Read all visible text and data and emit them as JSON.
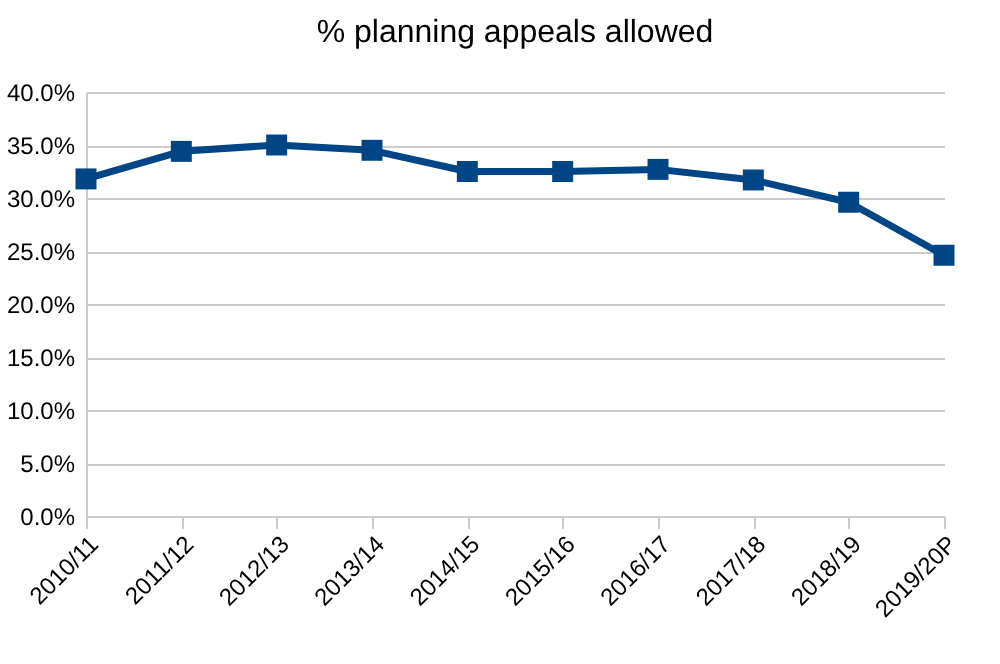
{
  "chart_data": {
    "type": "line",
    "title": "% planning appeals allowed",
    "categories": [
      "2010/11",
      "2011/12",
      "2012/13",
      "2013/14",
      "2014/15",
      "2015/16",
      "2016/17",
      "2017/18",
      "2018/19",
      "2019/20P"
    ],
    "series": [
      {
        "color": "#004586",
        "values": [
          31.8,
          34.4,
          35.0,
          34.5,
          32.5,
          32.5,
          32.7,
          31.7,
          29.6,
          24.6
        ]
      }
    ],
    "ylim": [
      0,
      40
    ],
    "yticks": [
      {
        "value": 0,
        "label": "0.0%"
      },
      {
        "value": 5,
        "label": "5.0%"
      },
      {
        "value": 10,
        "label": "10.0%"
      },
      {
        "value": 15,
        "label": "15.0%"
      },
      {
        "value": 20,
        "label": "20.0%"
      },
      {
        "value": 25,
        "label": "25.0%"
      },
      {
        "value": 30,
        "label": "30.0%"
      },
      {
        "value": 35,
        "label": "35.0%"
      },
      {
        "value": 40,
        "label": "40.0%"
      }
    ],
    "grid": "y",
    "legend": false,
    "marker": "square",
    "line_style": "solid"
  }
}
